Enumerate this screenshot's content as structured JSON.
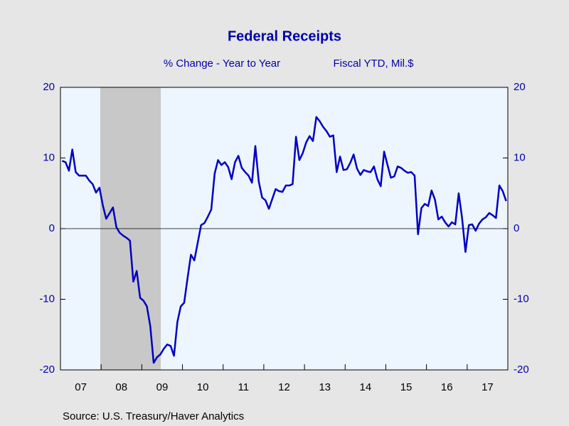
{
  "chart_data": {
    "type": "line",
    "title": "Federal Receipts",
    "subtitle_left": "% Change - Year to Year",
    "subtitle_right": "Fiscal YTD, Mil.$",
    "source": "Source:  U.S. Treasury/Haver Analytics",
    "categories": [
      null,
      null,
      null,
      null,
      null,
      null,
      "07",
      null,
      null,
      null,
      null,
      null,
      null,
      null,
      null,
      null,
      null,
      null,
      "08",
      null,
      null,
      null,
      null,
      null,
      null,
      null,
      null,
      null,
      null,
      null,
      "09",
      null,
      null,
      null,
      null,
      null,
      null,
      null,
      null,
      null,
      null,
      null,
      "10",
      null,
      null,
      null,
      null,
      null,
      null,
      null,
      null,
      null,
      null,
      null,
      "11",
      null,
      null,
      null,
      null,
      null,
      null,
      null,
      null,
      null,
      null,
      null,
      "12",
      null,
      null,
      null,
      null,
      null,
      null,
      null,
      null,
      null,
      null,
      null,
      "13",
      null,
      null,
      null,
      null,
      null,
      null,
      null,
      null,
      null,
      null,
      null,
      "14",
      null,
      null,
      null,
      null,
      null,
      null,
      null,
      null,
      null,
      null,
      null,
      "15",
      null,
      null,
      null,
      null,
      null,
      null,
      null,
      null,
      null,
      null,
      null,
      "16",
      null,
      null,
      null,
      null,
      null,
      null,
      null,
      null,
      null,
      null,
      null,
      "17",
      null,
      null,
      null,
      null,
      null
    ],
    "series": [
      {
        "name": "Federal Receipts",
        "color": "#0000c0",
        "values": [
          9.6,
          9.4,
          8.2,
          11.2,
          8,
          7.5,
          7.5,
          7.5,
          6.8,
          6.3,
          5.1,
          5.8,
          3.3,
          1.4,
          2.2,
          3.0,
          0.2,
          -0.6,
          -1.0,
          -1.3,
          -1.7,
          -7.5,
          -6.0,
          -9.8,
          -10.2,
          -11.0,
          -13.8,
          -19.0,
          -18.2,
          -17.8,
          -17.0,
          -16.4,
          -16.6,
          -18.0,
          -13.2,
          -11.0,
          -10.5,
          -7.0,
          -3.7,
          -4.5,
          -2.0,
          0.5,
          0.8,
          1.7,
          2.7,
          7.8,
          9.7,
          9.0,
          9.4,
          8.7,
          7.0,
          9.4,
          10.3,
          8.6,
          8.0,
          7.5,
          6.5,
          11.7,
          6.7,
          4.4,
          4.0,
          2.8,
          4.2,
          5.6,
          5.3,
          5.2,
          6.1,
          6.1,
          6.3,
          13.0,
          9.7,
          10.7,
          12.2,
          13.1,
          12.4,
          15.8,
          15.2,
          14.4,
          13.8,
          13.0,
          13.2,
          8.0,
          10.2,
          8.3,
          8.4,
          9.3,
          10.5,
          8.5,
          7.6,
          8.3,
          8.1,
          8.0,
          8.8,
          7.0,
          6.0,
          10.9,
          9.0,
          7.2,
          7.4,
          8.8,
          8.6,
          8.2,
          7.9,
          8.0,
          7.5,
          -0.8,
          2.9,
          3.5,
          3.2,
          5.4,
          4.1,
          1.3,
          1.7,
          0.9,
          0.3,
          0.9,
          0.6,
          5.0,
          1.5,
          -3.3,
          0.5,
          0.6,
          -0.3,
          0.7,
          1.3,
          1.6,
          2.2,
          1.9,
          1.5,
          6.1,
          5.3,
          3.9
        ]
      }
    ],
    "ylim": [
      -20,
      20
    ],
    "yticks": [
      -20,
      -10,
      0,
      10,
      20
    ],
    "y2lim": [
      -20,
      20
    ],
    "y2ticks": [
      -20,
      -10,
      0,
      10,
      20
    ],
    "zero_line": true
  }
}
